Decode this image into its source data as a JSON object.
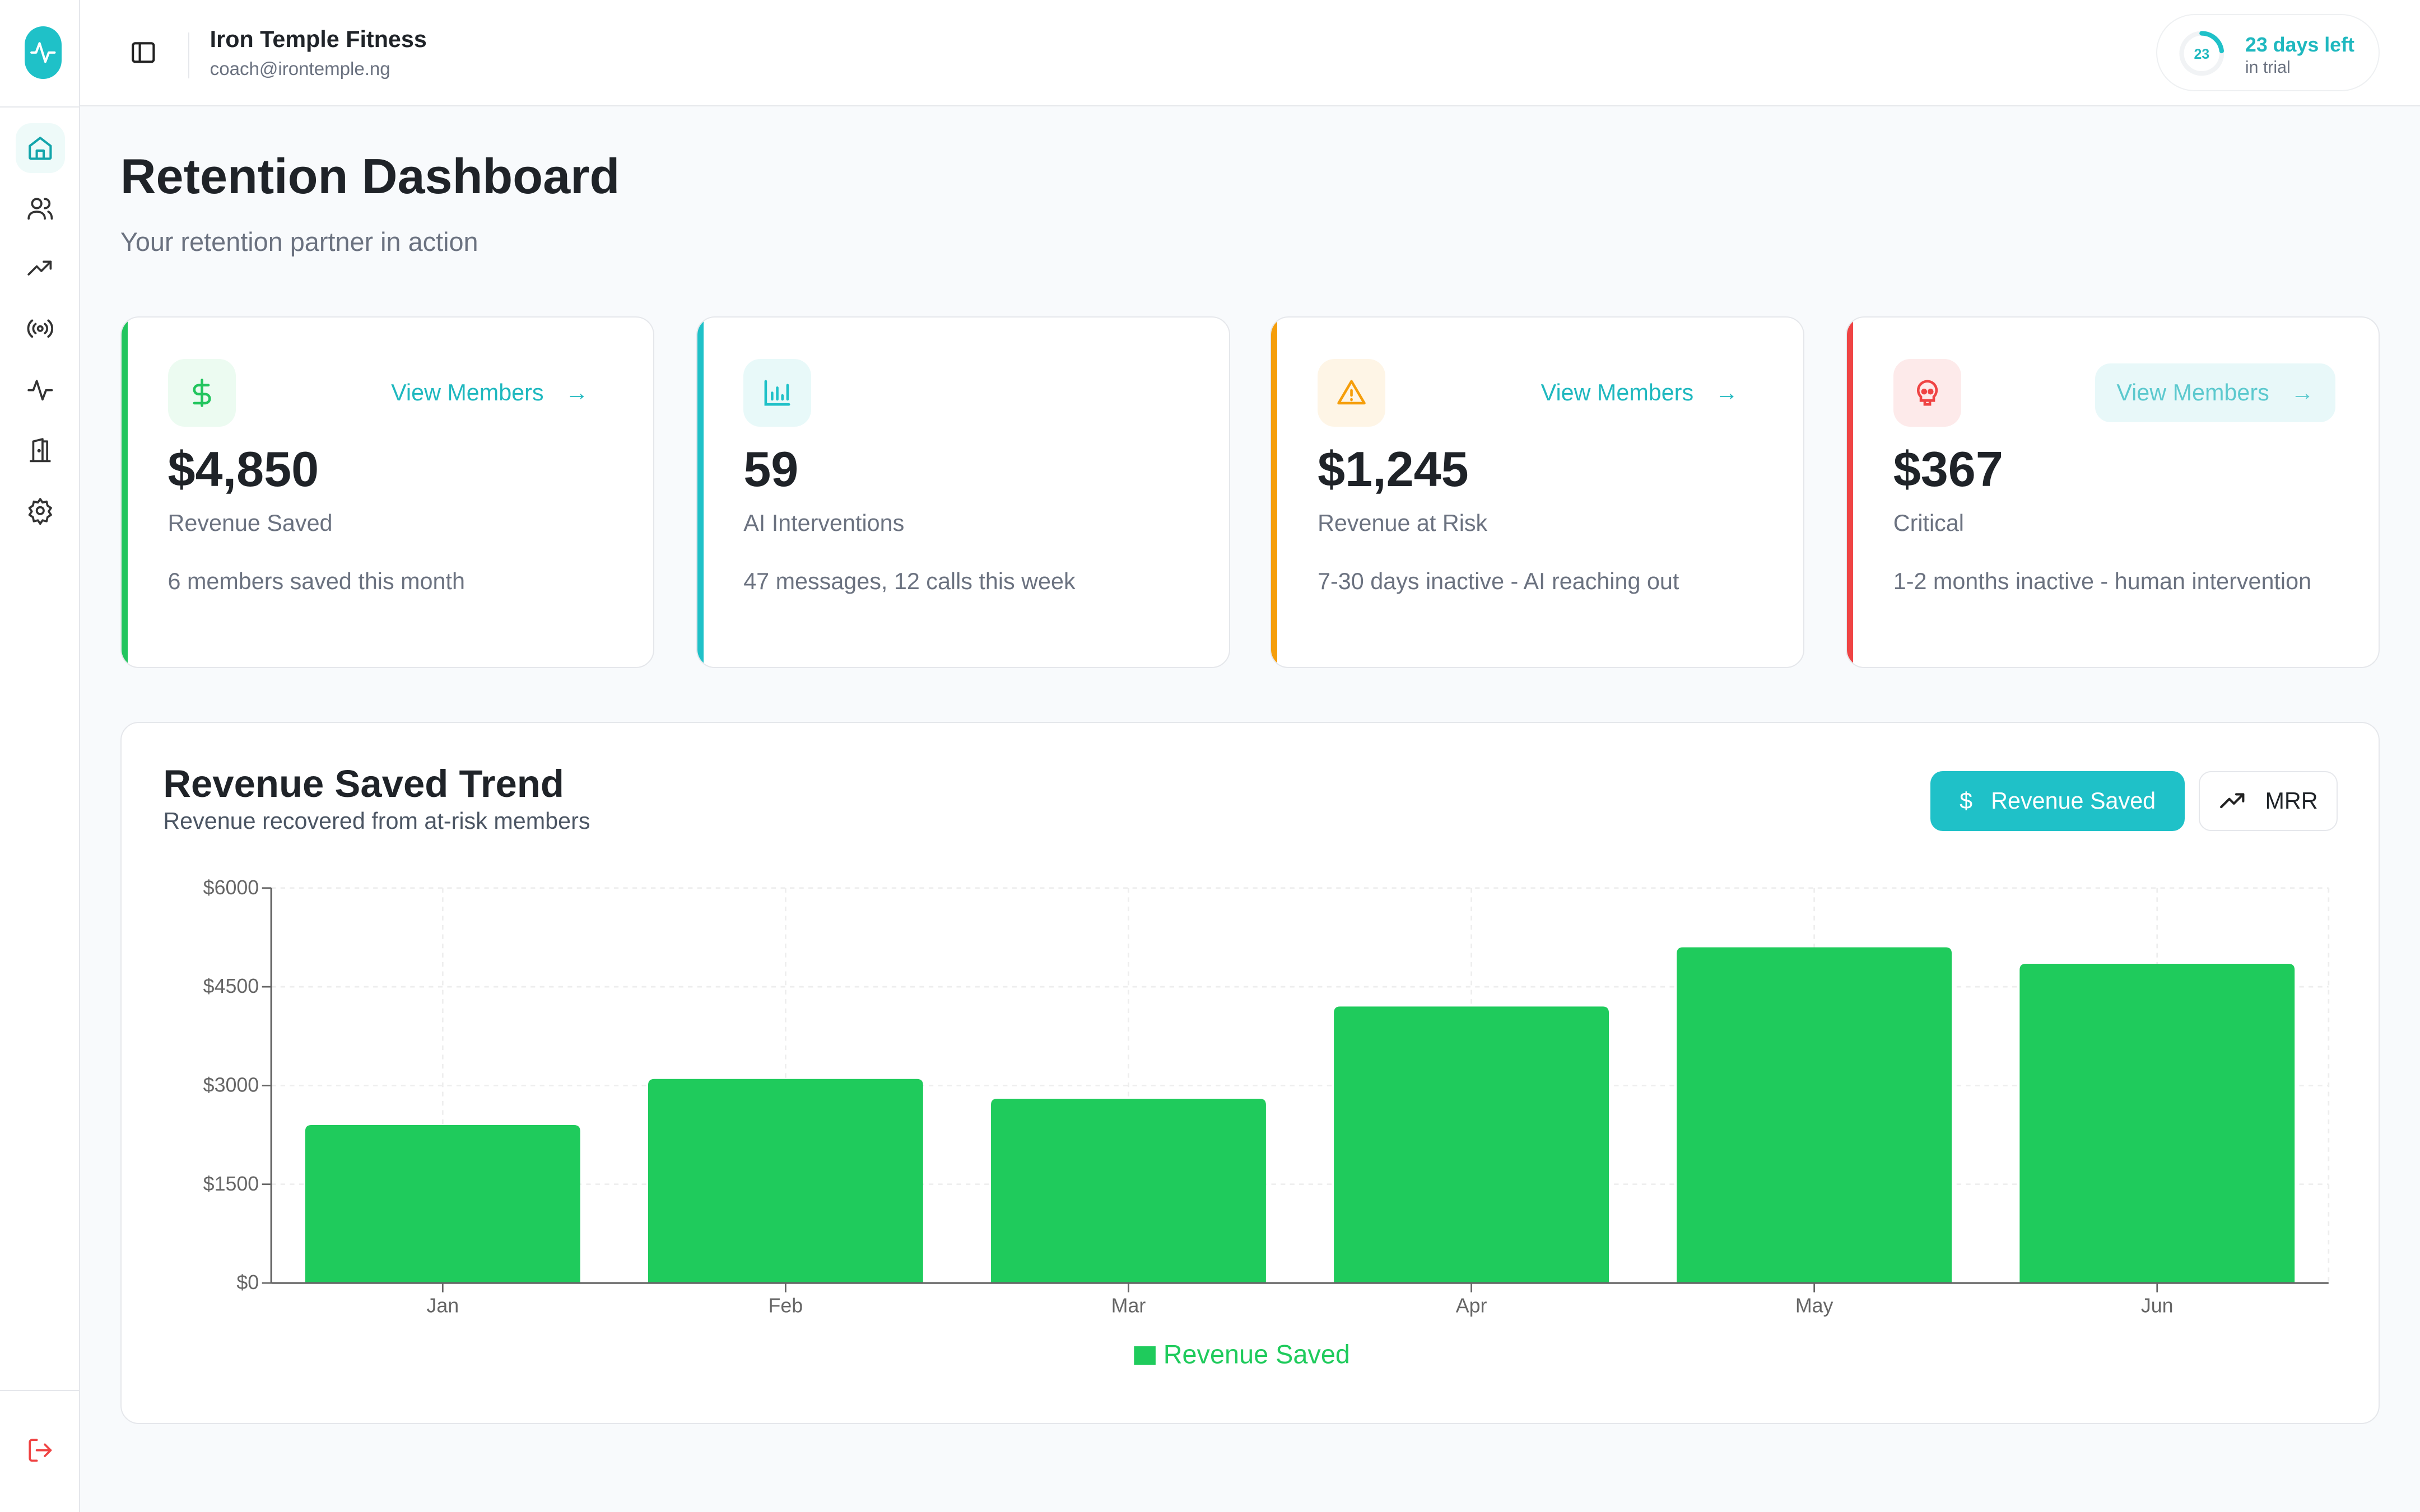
{
  "topbar": {
    "org_name": "Iron Temple Fitness",
    "email": "coach@irontemple.ng"
  },
  "trial": {
    "days": "23",
    "label": "23 days left",
    "sublabel": "in trial",
    "progress": 0.23,
    "color": "#1fc1c8"
  },
  "sidebar": {
    "items": [
      {
        "icon": "home-icon",
        "active": true
      },
      {
        "icon": "users-icon"
      },
      {
        "icon": "trending-up-icon"
      },
      {
        "icon": "broadcast-icon"
      },
      {
        "icon": "activity-icon"
      },
      {
        "icon": "door-icon"
      },
      {
        "icon": "settings-icon"
      }
    ],
    "logout_icon": "logout-icon"
  },
  "page": {
    "title": "Retention Dashboard",
    "subtitle": "Your retention partner in action"
  },
  "cards": [
    {
      "icon": "dollar-icon",
      "accent": "#22c55e",
      "value": "$4,850",
      "label": "Revenue Saved",
      "desc": "6 members saved this month",
      "link": "View Members"
    },
    {
      "icon": "bar-chart-icon",
      "accent": "#1fc1c8",
      "value": "59",
      "label": "AI Interventions",
      "desc": "47 messages, 12 calls this week"
    },
    {
      "icon": "warning-icon",
      "accent": "#f59e0b",
      "value": "$1,245",
      "label": "Revenue at Risk",
      "desc": "7-30 days inactive - AI reaching out",
      "link": "View Members"
    },
    {
      "icon": "skull-icon",
      "accent": "#ef4444",
      "value": "$367",
      "label": "Critical",
      "desc": "1-2 months inactive - human intervention",
      "link": "View Members"
    }
  ],
  "chart_section": {
    "title": "Revenue Saved Trend",
    "subtitle": "Revenue recovered from at-risk members",
    "toggle": {
      "revenue_label": "Revenue Saved",
      "mrr_label": "MRR",
      "active": "Revenue Saved"
    }
  },
  "chart_data": {
    "type": "bar",
    "categories": [
      "Jan",
      "Feb",
      "Mar",
      "Apr",
      "May",
      "Jun"
    ],
    "series": [
      {
        "name": "Revenue Saved",
        "values": [
          2400,
          3100,
          2800,
          4200,
          5100,
          4850
        ],
        "color": "#1fcb5c"
      }
    ],
    "ylim": [
      0,
      6000
    ],
    "yticks": [
      0,
      1500,
      3000,
      4500,
      6000
    ],
    "ytick_labels": [
      "$0",
      "$1500",
      "$3000",
      "$4500",
      "$6000"
    ],
    "grid": true,
    "legend": "bottom"
  }
}
